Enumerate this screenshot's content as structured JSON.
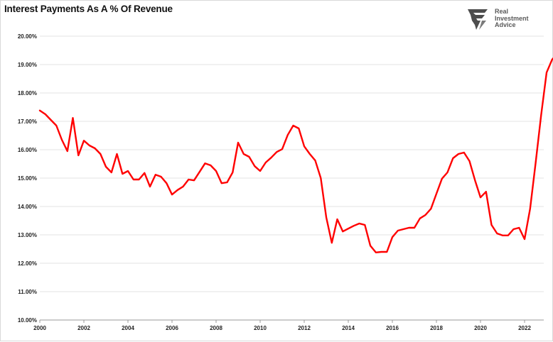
{
  "title": "Interest Payments As A % Of Revenue",
  "brand": {
    "name_lines": [
      "Real",
      "Investment",
      "Advice"
    ],
    "logo_icon": "eagle-logo-icon"
  },
  "colors": {
    "line": "#ff0000",
    "grid": "#e3e3e3",
    "axis": "#999999",
    "text": "#222222"
  },
  "chart_data": {
    "type": "line",
    "title": "Interest Payments As A % Of Revenue",
    "xlabel": "",
    "ylabel": "",
    "xlim": [
      2000,
      2023.6
    ],
    "ylim": [
      10,
      20
    ],
    "grid": true,
    "legend": "none",
    "x_ticks": [
      2000,
      2002,
      2004,
      2006,
      2008,
      2010,
      2012,
      2014,
      2016,
      2018,
      2020,
      2022
    ],
    "x_tick_labels": [
      "2000",
      "2002",
      "2004",
      "2006",
      "2008",
      "2010",
      "2012",
      "2014",
      "2016",
      "2018",
      "2020",
      "2022"
    ],
    "y_ticks": [
      10,
      11,
      12,
      13,
      14,
      15,
      16,
      17,
      18,
      19,
      20
    ],
    "y_tick_labels": [
      "10.00%",
      "11.00%",
      "12.00%",
      "13.00%",
      "14.00%",
      "15.00%",
      "16.00%",
      "17.00%",
      "18.00%",
      "19.00%",
      "20.00%"
    ],
    "series": [
      {
        "color": "#ff0000",
        "x": [
          2000.0,
          2000.25,
          2000.5,
          2000.75,
          2001.0,
          2001.25,
          2001.5,
          2001.75,
          2002.0,
          2002.25,
          2002.5,
          2002.75,
          2003.0,
          2003.25,
          2003.5,
          2003.75,
          2004.0,
          2004.25,
          2004.5,
          2004.75,
          2005.0,
          2005.25,
          2005.5,
          2005.75,
          2006.0,
          2006.25,
          2006.5,
          2006.75,
          2007.0,
          2007.25,
          2007.5,
          2007.75,
          2008.0,
          2008.25,
          2008.5,
          2008.75,
          2009.0,
          2009.25,
          2009.5,
          2009.75,
          2010.0,
          2010.25,
          2010.5,
          2010.75,
          2011.0,
          2011.25,
          2011.5,
          2011.75,
          2012.0,
          2012.25,
          2012.5,
          2012.75,
          2013.0,
          2013.25,
          2013.5,
          2013.75,
          2014.0,
          2014.25,
          2014.5,
          2014.75,
          2015.0,
          2015.25,
          2015.5,
          2015.75,
          2016.0,
          2016.25,
          2016.5,
          2016.75,
          2017.0,
          2017.25,
          2017.5,
          2017.75,
          2018.0,
          2018.25,
          2018.5,
          2018.75,
          2019.0,
          2019.25,
          2019.5,
          2019.75,
          2020.0,
          2020.25,
          2020.5,
          2020.75,
          2021.0,
          2021.25,
          2021.5,
          2021.75,
          2022.0,
          2022.25,
          2022.5,
          2022.75,
          2023.0,
          2023.25,
          2023.5
        ],
        "y": [
          17.38,
          17.25,
          17.05,
          16.85,
          16.35,
          15.95,
          17.12,
          15.8,
          16.32,
          16.15,
          16.05,
          15.85,
          15.4,
          15.2,
          15.85,
          15.15,
          15.25,
          14.95,
          14.95,
          15.18,
          14.7,
          15.12,
          15.05,
          14.82,
          14.42,
          14.58,
          14.7,
          14.95,
          14.92,
          15.22,
          15.52,
          15.45,
          15.25,
          14.82,
          14.85,
          15.2,
          16.25,
          15.85,
          15.75,
          15.42,
          15.25,
          15.55,
          15.72,
          15.92,
          16.02,
          16.52,
          16.85,
          16.75,
          16.12,
          15.85,
          15.62,
          15.0,
          13.62,
          12.72,
          13.55,
          13.12,
          13.22,
          13.32,
          13.4,
          13.35,
          12.62,
          12.38,
          12.4,
          12.4,
          12.92,
          13.15,
          13.2,
          13.25,
          13.25,
          13.58,
          13.7,
          13.92,
          14.45,
          14.98,
          15.2,
          15.7,
          15.85,
          15.9,
          15.6,
          14.92,
          14.32,
          14.52,
          13.35,
          13.05,
          12.98,
          12.98,
          13.2,
          13.25,
          12.85,
          13.92,
          15.52,
          17.22,
          18.72,
          19.18,
          19.38
        ]
      }
    ]
  }
}
